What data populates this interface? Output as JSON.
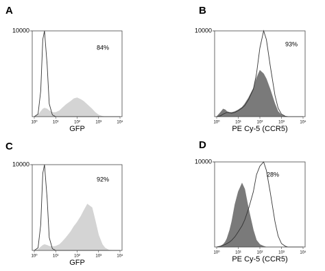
{
  "chart_data": [
    {
      "type": "area",
      "label": "A",
      "xlabel": "GFP",
      "annotation": "84%",
      "x": [
        1,
        1.5,
        2,
        2.5,
        3,
        4,
        5,
        7,
        10,
        15,
        20,
        30,
        50,
        70,
        100,
        150,
        200,
        300,
        500,
        700,
        1000,
        1500,
        2000,
        3000,
        5000,
        7000,
        10000
      ],
      "xlim": [
        1,
        10000
      ],
      "ylim": [
        0,
        10000
      ],
      "log_x": true,
      "xticks": [
        {
          "value": 1,
          "label": "10⁰"
        },
        {
          "value": 10,
          "label": "10¹"
        },
        {
          "value": 100,
          "label": "10²"
        },
        {
          "value": 1000,
          "label": "10³"
        },
        {
          "value": 10000,
          "label": "10⁴"
        }
      ],
      "yticks": [
        10000
      ],
      "series": [
        {
          "color": "#d4d4d4",
          "filled": true,
          "values": [
            0,
            200,
            600,
            900,
            1000,
            900,
            700,
            500,
            500,
            700,
            1000,
            1400,
            1800,
            2100,
            2200,
            2000,
            1800,
            1400,
            900,
            500,
            200,
            50,
            0,
            0,
            0,
            0,
            0
          ]
        },
        {
          "color": "#333333",
          "filled": false,
          "values": [
            0,
            300,
            3000,
            9000,
            10000,
            6000,
            1500,
            200,
            0,
            0,
            0,
            0,
            0,
            0,
            0,
            0,
            0,
            0,
            0,
            0,
            0,
            0,
            0,
            0,
            0,
            0,
            0
          ]
        }
      ]
    },
    {
      "type": "area",
      "label": "B",
      "xlabel": "PE Cy-5 (CCR5)",
      "annotation": "93%",
      "x": [
        1,
        1.5,
        2,
        2.5,
        3,
        4,
        5,
        7,
        10,
        15,
        20,
        30,
        50,
        70,
        100,
        150,
        200,
        300,
        500,
        700,
        1000,
        1500,
        2000,
        3000,
        5000,
        7000,
        10000
      ],
      "xlim": [
        1,
        10000
      ],
      "ylim": [
        0,
        10000
      ],
      "log_x": true,
      "xticks": [
        {
          "value": 1,
          "label": "10⁰"
        },
        {
          "value": 10,
          "label": "10¹"
        },
        {
          "value": 100,
          "label": "10²"
        },
        {
          "value": 1000,
          "label": "10³"
        },
        {
          "value": 10000,
          "label": "10⁴"
        }
      ],
      "yticks": [
        10000
      ],
      "series": [
        {
          "color": "#7a7a7a",
          "filled": true,
          "values": [
            0,
            500,
            900,
            800,
            600,
            500,
            500,
            600,
            800,
            1100,
            1500,
            2200,
            3300,
            4500,
            5400,
            5000,
            4400,
            3200,
            1500,
            600,
            200,
            0,
            0,
            0,
            0,
            0,
            0
          ]
        },
        {
          "color": "#333333",
          "filled": false,
          "values": [
            0,
            100,
            300,
            400,
            500,
            450,
            400,
            500,
            700,
            1000,
            1300,
            2000,
            3200,
            5000,
            8000,
            10000,
            9000,
            6000,
            2500,
            1000,
            300,
            50,
            0,
            0,
            0,
            0,
            0
          ]
        }
      ]
    },
    {
      "type": "area",
      "label": "C",
      "xlabel": "GFP",
      "annotation": "92%",
      "x": [
        1,
        1.5,
        2,
        2.5,
        3,
        4,
        5,
        7,
        10,
        15,
        20,
        30,
        50,
        70,
        100,
        150,
        200,
        300,
        500,
        700,
        1000,
        1500,
        2000,
        3000,
        5000,
        7000,
        10000
      ],
      "xlim": [
        1,
        10000
      ],
      "ylim": [
        0,
        10000
      ],
      "log_x": true,
      "xticks": [
        {
          "value": 1,
          "label": "10⁰"
        },
        {
          "value": 10,
          "label": "10¹"
        },
        {
          "value": 100,
          "label": "10²"
        },
        {
          "value": 1000,
          "label": "10³"
        },
        {
          "value": 10000,
          "label": "10⁴"
        }
      ],
      "yticks": [
        10000
      ],
      "series": [
        {
          "color": "#d4d4d4",
          "filled": true,
          "values": [
            0,
            100,
            400,
            600,
            700,
            600,
            500,
            450,
            500,
            700,
            1000,
            1500,
            2200,
            2800,
            3300,
            4000,
            4600,
            5400,
            5000,
            3500,
            1800,
            700,
            300,
            50,
            0,
            0,
            0
          ]
        },
        {
          "color": "#333333",
          "filled": false,
          "values": [
            0,
            300,
            3000,
            9000,
            10000,
            6000,
            1500,
            200,
            0,
            0,
            0,
            0,
            0,
            0,
            0,
            0,
            0,
            0,
            0,
            0,
            0,
            0,
            0,
            0,
            0,
            0,
            0
          ]
        }
      ]
    },
    {
      "type": "area",
      "label": "D",
      "xlabel": "PE Cy-5 (CCR5)",
      "annotation": "28%",
      "x": [
        1,
        1.5,
        2,
        2.5,
        3,
        4,
        5,
        7,
        10,
        15,
        20,
        30,
        50,
        70,
        100,
        150,
        200,
        300,
        500,
        700,
        1000,
        1500,
        2000,
        3000,
        5000,
        7000,
        10000
      ],
      "xlim": [
        1,
        10000
      ],
      "ylim": [
        0,
        10000
      ],
      "log_x": true,
      "xticks": [
        {
          "value": 1,
          "label": "10⁰"
        },
        {
          "value": 10,
          "label": "10¹"
        },
        {
          "value": 100,
          "label": "10²"
        },
        {
          "value": 1000,
          "label": "10³"
        },
        {
          "value": 10000,
          "label": "10⁴"
        }
      ],
      "yticks": [
        10000
      ],
      "series": [
        {
          "color": "#7a7a7a",
          "filled": true,
          "values": [
            0,
            100,
            300,
            600,
            1000,
            2000,
            3000,
            5000,
            6500,
            7500,
            6800,
            4500,
            2000,
            800,
            300,
            100,
            0,
            0,
            0,
            0,
            0,
            0,
            0,
            0,
            0,
            0,
            0
          ]
        },
        {
          "color": "#333333",
          "filled": false,
          "values": [
            0,
            100,
            200,
            300,
            400,
            600,
            800,
            1200,
            1800,
            2500,
            3200,
            4500,
            6500,
            8500,
            9500,
            10000,
            9000,
            6500,
            3000,
            1300,
            400,
            100,
            0,
            0,
            0,
            0,
            0
          ]
        }
      ]
    }
  ]
}
